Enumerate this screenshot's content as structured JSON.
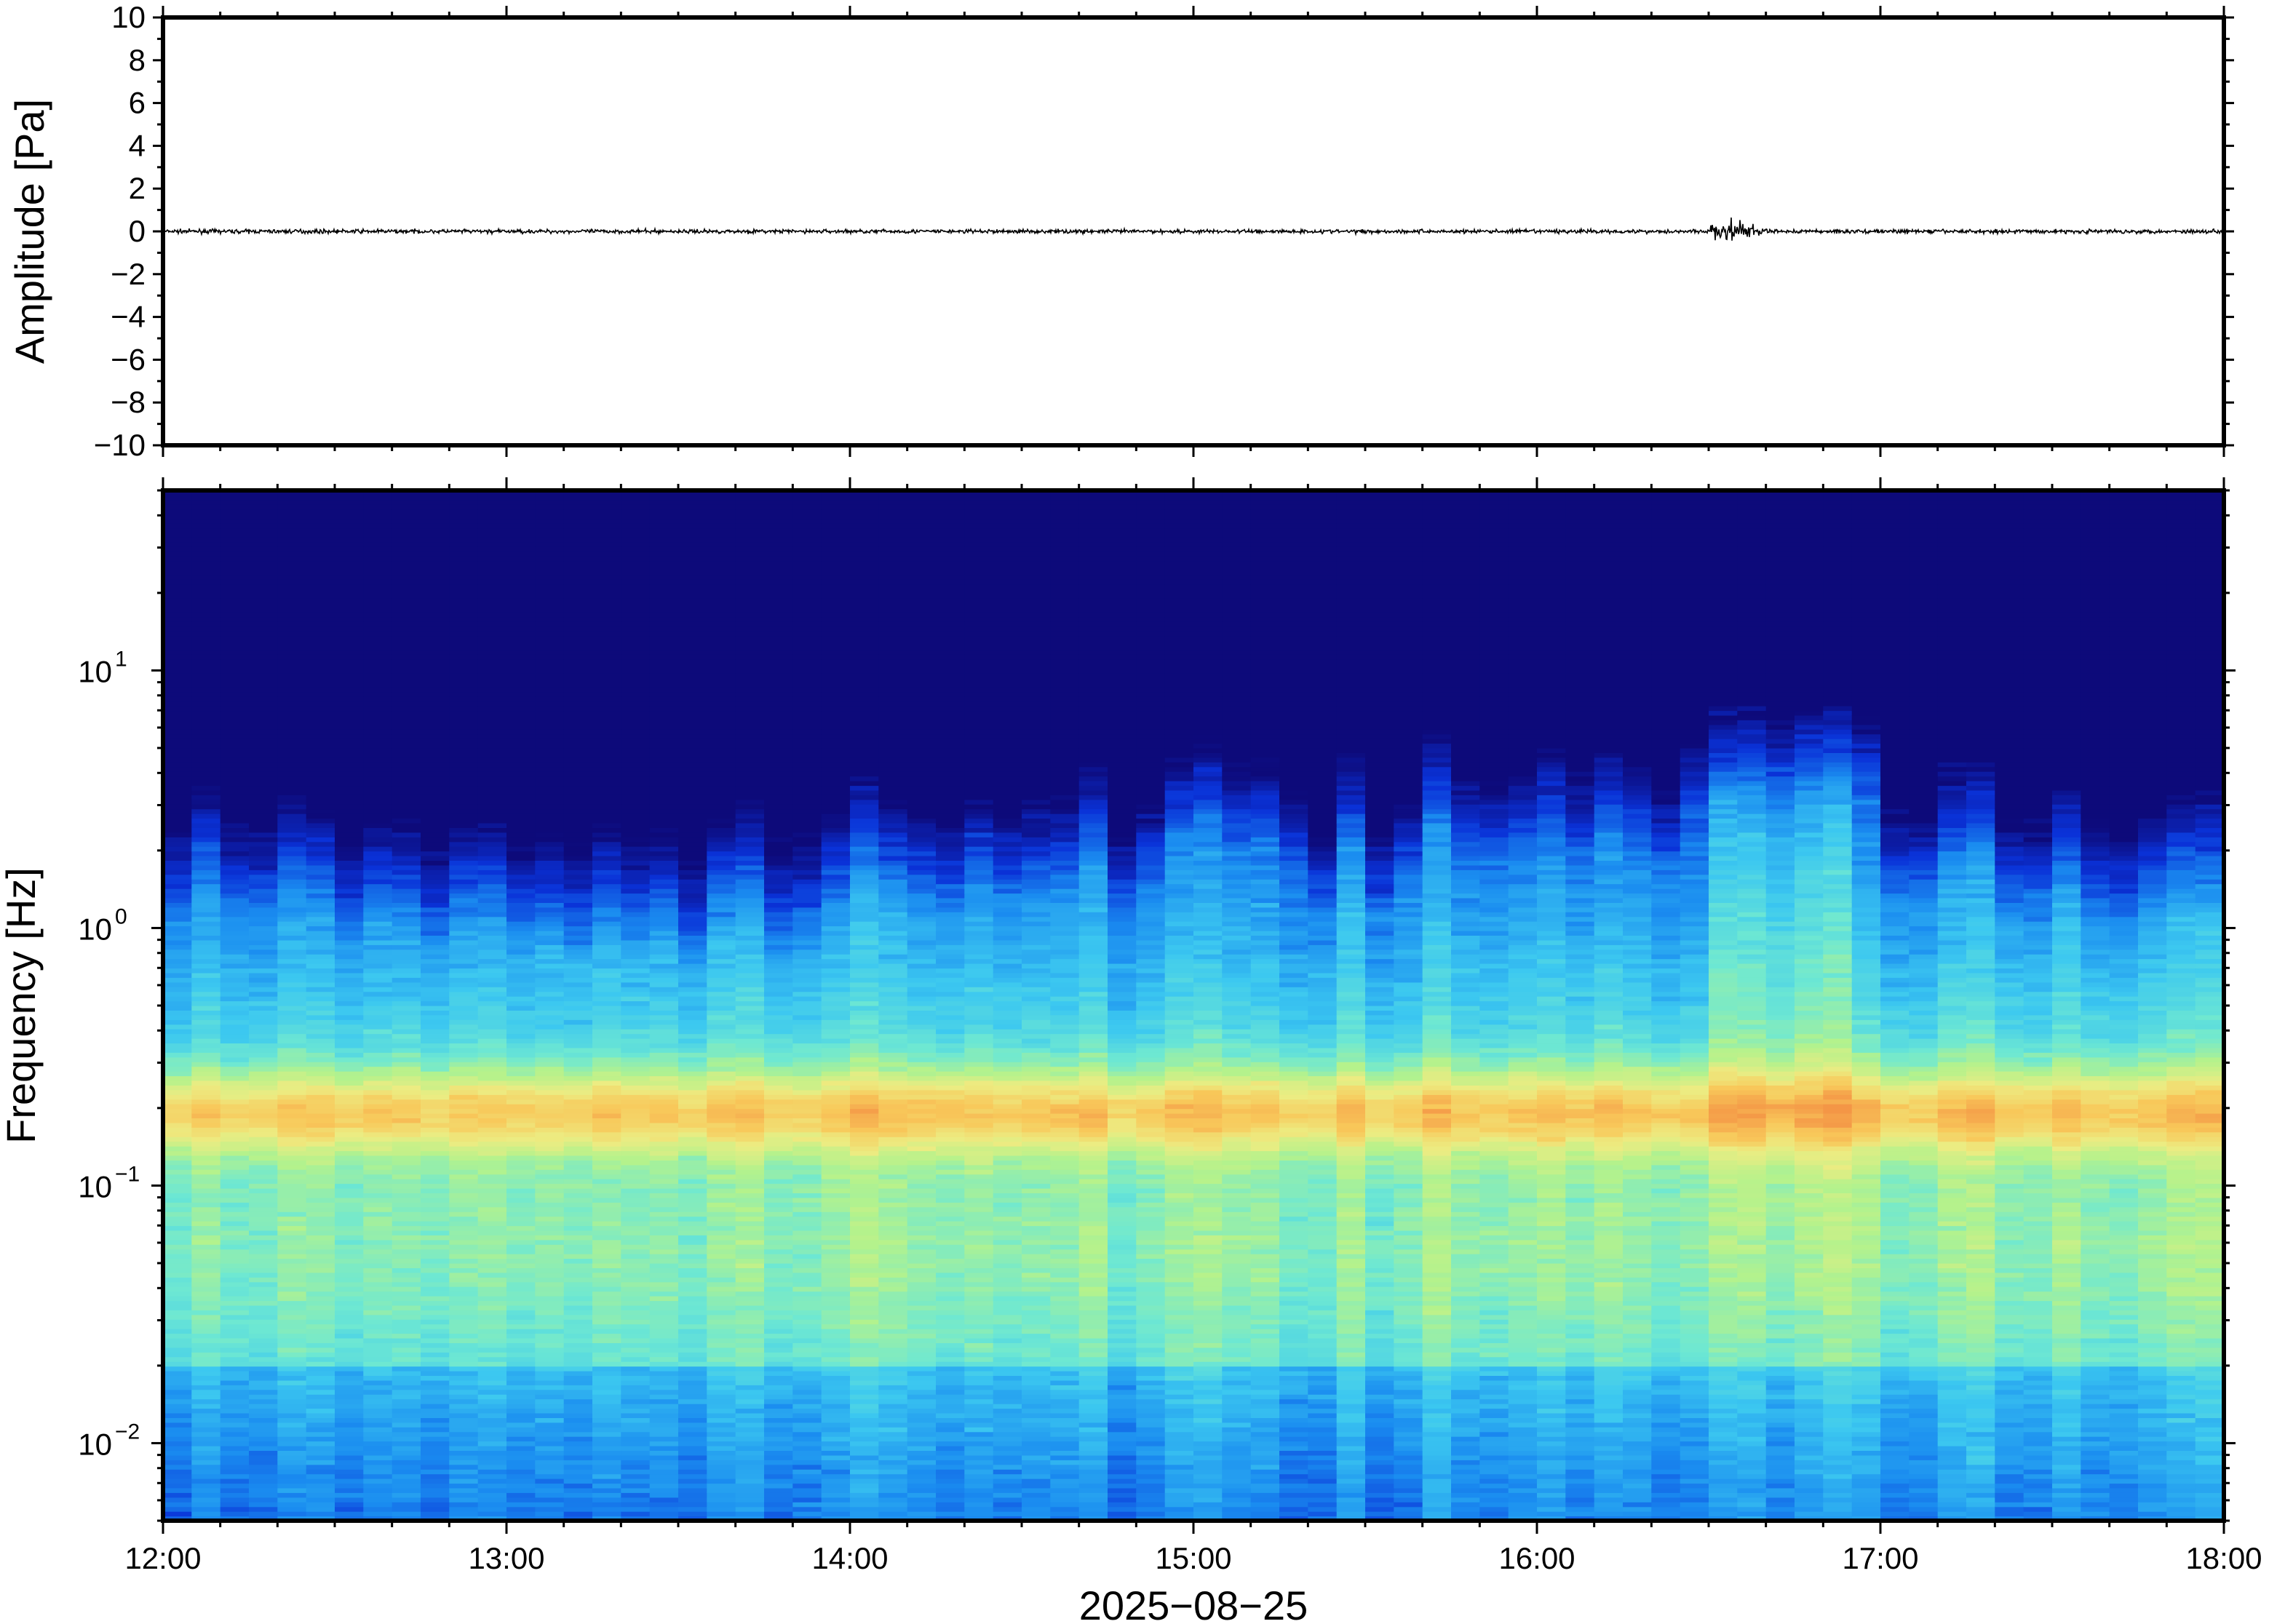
{
  "chart_data": [
    {
      "type": "line",
      "panel": "waveform",
      "ylabel": "Amplitude [Pa]",
      "ylim": [
        -10,
        10
      ],
      "yticks": [
        10,
        8,
        6,
        4,
        2,
        0,
        -2,
        -4,
        -6,
        -8,
        -10
      ],
      "ytick_labels": [
        "10",
        "8",
        "6",
        "4",
        "2",
        "0",
        "−2",
        "−4",
        "−6",
        "−8",
        "−10"
      ],
      "xlim": [
        "12:00",
        "18:00"
      ],
      "series": [
        {
          "color": "#000000",
          "baseline": 0,
          "typical_amplitude": 0.15,
          "burst": {
            "start": "16:30",
            "end": "16:45",
            "peak": "16:34",
            "peak_amplitude": 0.9
          }
        }
      ]
    },
    {
      "type": "heatmap",
      "panel": "spectrogram",
      "ylabel": "Frequency [Hz]",
      "xlabel": "2025−08−25",
      "y_scale": "log",
      "ylim": [
        0.005,
        50
      ],
      "yticks": [
        0.01,
        0.1,
        1,
        10
      ],
      "ytick_labels": [
        {
          "base": "10",
          "exp": "−2"
        },
        {
          "base": "10",
          "exp": "−1"
        },
        {
          "base": "10",
          "exp": "0"
        },
        {
          "base": "10",
          "exp": "1"
        }
      ],
      "xlim": [
        "12:00",
        "18:00"
      ],
      "xticks": [
        "12:00",
        "13:00",
        "14:00",
        "15:00",
        "16:00",
        "17:00",
        "18:00"
      ],
      "colormap": [
        "#0d0a7a",
        "#0a32d8",
        "#1a8cf0",
        "#3cc8f0",
        "#6ee8d2",
        "#b4f28c",
        "#ecec82",
        "#f8c85a",
        "#f49646"
      ],
      "microseism_band_hz": [
        0.15,
        0.25
      ],
      "event": {
        "start": "16:28",
        "end": "16:55",
        "max_frequency_hz": 20
      }
    }
  ]
}
